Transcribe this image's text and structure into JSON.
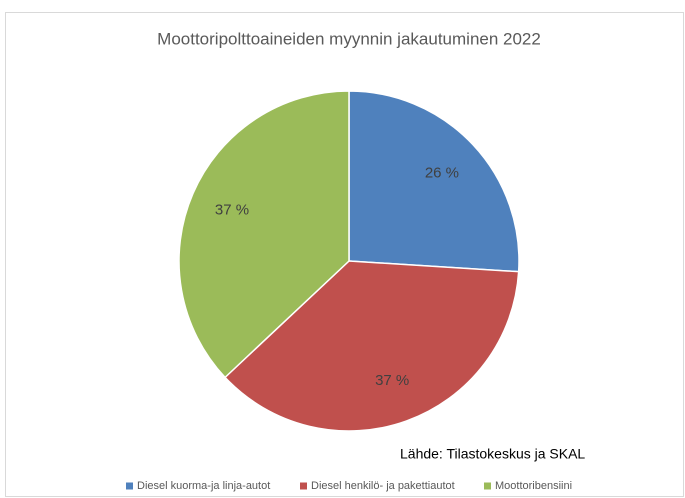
{
  "chart_data": {
    "type": "pie",
    "title": "Moottoripolttoaineiden myynnin jakautuminen 2022",
    "categories": [
      "Diesel kuorma-ja linja-autot",
      "Diesel henkilö- ja pakettiautot",
      "Moottoribensiini"
    ],
    "values": [
      26,
      37,
      37
    ],
    "value_labels": [
      "26 %",
      "37 %",
      "37 %"
    ],
    "colors": [
      "#4f81bd",
      "#c0504d",
      "#9bbb59"
    ],
    "annotation": "Lähde: Tilastokeskus ja SKAL",
    "legend": "bottom"
  }
}
